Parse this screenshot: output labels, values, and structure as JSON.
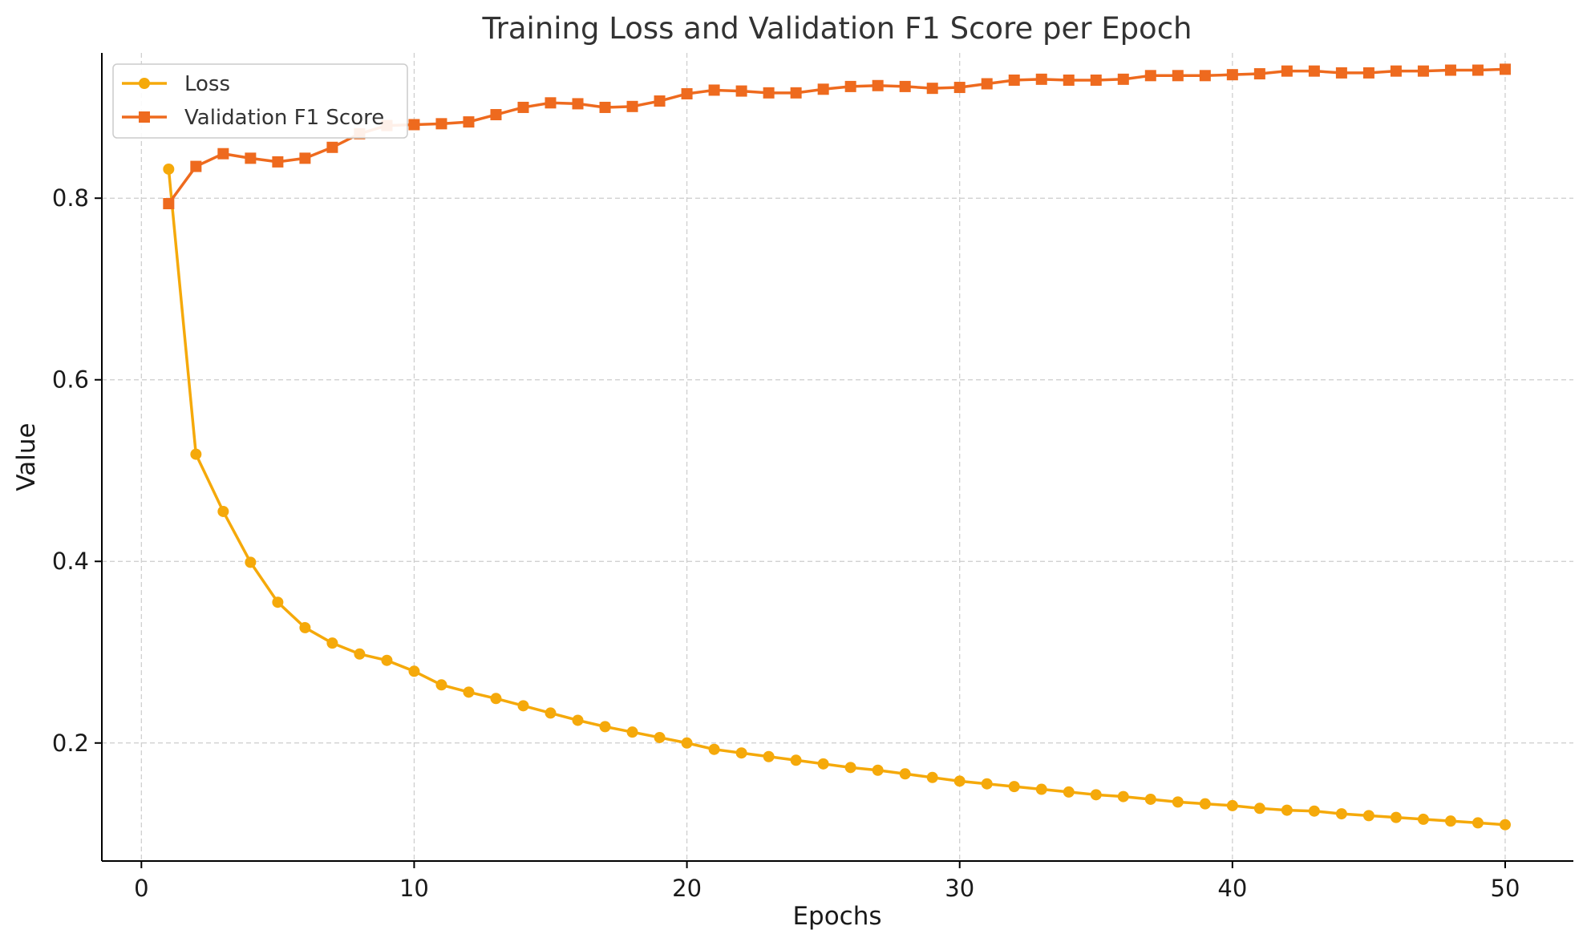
{
  "colors": {
    "loss": "#F5A90A",
    "f1": "#EE6A1E",
    "grid": "#cccccc",
    "axis": "#000000"
  },
  "chart_data": {
    "type": "line",
    "title": "Training Loss and Validation F1 Score per Epoch",
    "xlabel": "Epochs",
    "ylabel": "Value",
    "xlim": [
      -1.45,
      52.5
    ],
    "ylim": [
      0.07,
      0.96
    ],
    "xticks": [
      0,
      10,
      20,
      30,
      40,
      50
    ],
    "yticks": [
      0.2,
      0.4,
      0.6,
      0.8
    ],
    "xtick_labels": [
      "0",
      "10",
      "20",
      "30",
      "40",
      "50"
    ],
    "ytick_labels": [
      "0.2",
      "0.4",
      "0.6",
      "0.8"
    ],
    "grid": true,
    "legend_position": "top-left",
    "x": [
      1,
      2,
      3,
      4,
      5,
      6,
      7,
      8,
      9,
      10,
      11,
      12,
      13,
      14,
      15,
      16,
      17,
      18,
      19,
      20,
      21,
      22,
      23,
      24,
      25,
      26,
      27,
      28,
      29,
      30,
      31,
      32,
      33,
      34,
      35,
      36,
      37,
      38,
      39,
      40,
      41,
      42,
      43,
      44,
      45,
      46,
      47,
      48,
      49,
      50
    ],
    "series": [
      {
        "name": "Loss",
        "marker": "circle",
        "color_key": "loss",
        "values": [
          0.832,
          0.518,
          0.455,
          0.399,
          0.355,
          0.327,
          0.31,
          0.298,
          0.291,
          0.279,
          0.264,
          0.256,
          0.249,
          0.241,
          0.233,
          0.225,
          0.218,
          0.212,
          0.206,
          0.2,
          0.193,
          0.189,
          0.185,
          0.181,
          0.177,
          0.173,
          0.17,
          0.166,
          0.162,
          0.158,
          0.155,
          0.152,
          0.149,
          0.146,
          0.143,
          0.141,
          0.138,
          0.135,
          0.133,
          0.131,
          0.128,
          0.126,
          0.125,
          0.122,
          0.12,
          0.118,
          0.116,
          0.114,
          0.112,
          0.11
        ]
      },
      {
        "name": "Validation F1 Score",
        "marker": "square",
        "color_key": "f1",
        "values": [
          0.794,
          0.835,
          0.849,
          0.844,
          0.84,
          0.844,
          0.856,
          0.871,
          0.88,
          0.881,
          0.882,
          0.884,
          0.892,
          0.9,
          0.905,
          0.904,
          0.9,
          0.901,
          0.907,
          0.915,
          0.919,
          0.918,
          0.916,
          0.916,
          0.92,
          0.923,
          0.924,
          0.923,
          0.921,
          0.922,
          0.926,
          0.93,
          0.931,
          0.93,
          0.93,
          0.931,
          0.935,
          0.935,
          0.935,
          0.936,
          0.937,
          0.94,
          0.94,
          0.938,
          0.938,
          0.94,
          0.94,
          0.941,
          0.941,
          0.942
        ]
      }
    ]
  }
}
